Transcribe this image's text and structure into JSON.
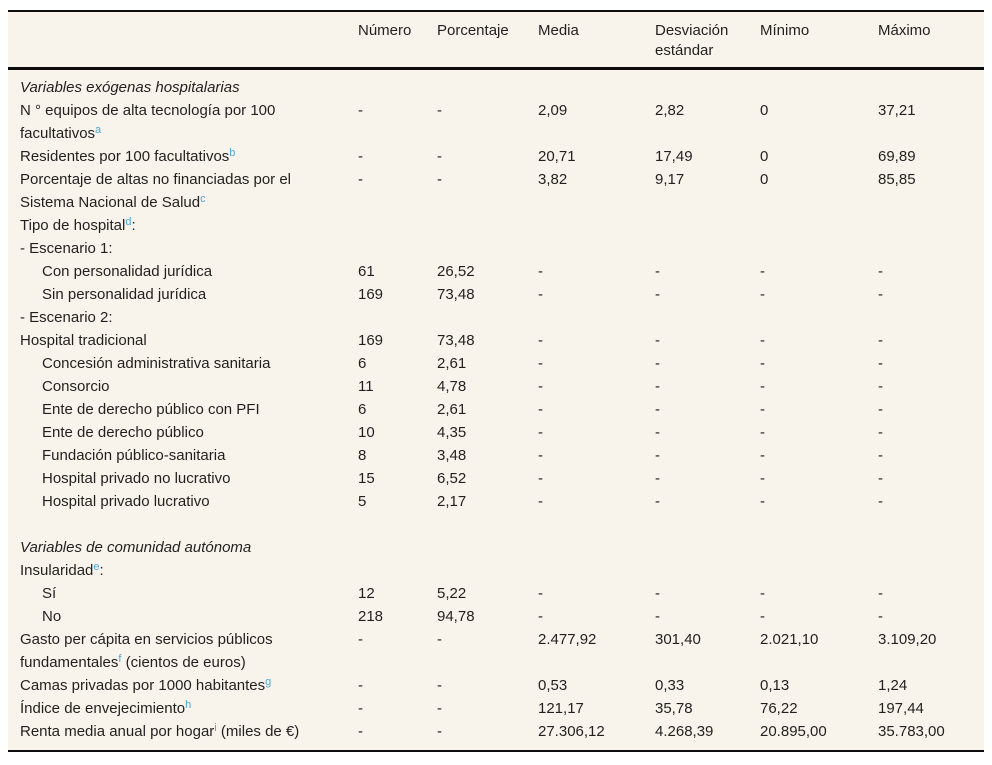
{
  "colors": {
    "table_background": "#f8f4ec",
    "border": "#0d0d0d",
    "text": "#231f1f",
    "footnote_link": "#4fa7d9"
  },
  "table": {
    "headers": [
      "Número",
      "Porcentaje",
      "Media",
      "Desviación estándar",
      "Mínimo",
      "Máximo"
    ],
    "rows": [
      {
        "style": "italic",
        "parts": [
          {
            "text": "Variables exógenas hospitalarias"
          }
        ],
        "cells": [
          "",
          "",
          "",
          "",
          "",
          ""
        ]
      },
      {
        "parts": [
          {
            "text": "N ° equipos de alta tecnología por 100 facultativos"
          },
          {
            "sup": "a"
          }
        ],
        "cells": [
          "-",
          "-",
          "2,09",
          "2,82",
          "0",
          "37,21"
        ]
      },
      {
        "parts": [
          {
            "text": "Residentes por 100 facultativos"
          },
          {
            "sup": "b"
          }
        ],
        "cells": [
          "-",
          "-",
          "20,71",
          "17,49",
          "0",
          "69,89"
        ]
      },
      {
        "parts": [
          {
            "text": "Porcentaje de altas no financiadas por el Sistema Nacional de Salud"
          },
          {
            "sup": "c"
          }
        ],
        "cells": [
          "-",
          "-",
          "3,82",
          "9,17",
          "0",
          "85,85"
        ]
      },
      {
        "parts": [
          {
            "text": "Tipo de hospital"
          },
          {
            "sup": "d"
          },
          {
            "text": ":"
          }
        ],
        "cells": [
          "",
          "",
          "",
          "",
          "",
          ""
        ]
      },
      {
        "parts": [
          {
            "text": "- Escenario 1:"
          }
        ],
        "cells": [
          "",
          "",
          "",
          "",
          "",
          ""
        ]
      },
      {
        "indent": true,
        "parts": [
          {
            "text": "Con personalidad jurídica"
          }
        ],
        "cells": [
          "61",
          "26,52",
          "-",
          "-",
          "-",
          "-"
        ]
      },
      {
        "indent": true,
        "parts": [
          {
            "text": "Sin personalidad jurídica"
          }
        ],
        "cells": [
          "169",
          "73,48",
          "-",
          "-",
          "-",
          "-"
        ]
      },
      {
        "parts": [
          {
            "text": "- Escenario 2:"
          }
        ],
        "cells": [
          "",
          "",
          "",
          "",
          "",
          ""
        ]
      },
      {
        "parts": [
          {
            "text": "Hospital tradicional"
          }
        ],
        "cells": [
          "169",
          "73,48",
          "-",
          "-",
          "-",
          "-"
        ]
      },
      {
        "indent": true,
        "parts": [
          {
            "text": "Concesión administrativa sanitaria"
          }
        ],
        "cells": [
          "6",
          "2,61",
          "-",
          "-",
          "-",
          "-"
        ]
      },
      {
        "indent": true,
        "parts": [
          {
            "text": "Consorcio"
          }
        ],
        "cells": [
          "11",
          "4,78",
          "-",
          "-",
          "-",
          "-"
        ]
      },
      {
        "indent": true,
        "parts": [
          {
            "text": "Ente de derecho público con PFI"
          }
        ],
        "cells": [
          "6",
          "2,61",
          "-",
          "-",
          "-",
          "-"
        ]
      },
      {
        "indent": true,
        "parts": [
          {
            "text": "Ente de derecho público"
          }
        ],
        "cells": [
          "10",
          "4,35",
          "-",
          "-",
          "-",
          "-"
        ]
      },
      {
        "indent": true,
        "parts": [
          {
            "text": "Fundación público-sanitaria"
          }
        ],
        "cells": [
          "8",
          "3,48",
          "-",
          "-",
          "-",
          "-"
        ]
      },
      {
        "indent": true,
        "parts": [
          {
            "text": "Hospital privado no lucrativo"
          }
        ],
        "cells": [
          "15",
          "6,52",
          "-",
          "-",
          "-",
          "-"
        ]
      },
      {
        "indent": true,
        "parts": [
          {
            "text": "Hospital privado lucrativo"
          }
        ],
        "cells": [
          "5",
          "2,17",
          "-",
          "-",
          "-",
          "-"
        ]
      },
      {
        "spacer": true
      },
      {
        "style": "italic",
        "parts": [
          {
            "text": "Variables de comunidad autónoma"
          }
        ],
        "cells": [
          "",
          "",
          "",
          "",
          "",
          ""
        ]
      },
      {
        "parts": [
          {
            "text": "Insularidad"
          },
          {
            "sup": "e"
          },
          {
            "text": ":"
          }
        ],
        "cells": [
          "",
          "",
          "",
          "",
          "",
          ""
        ]
      },
      {
        "indent": true,
        "parts": [
          {
            "text": "Sí"
          }
        ],
        "cells": [
          "12",
          "5,22",
          "-",
          "-",
          "-",
          "-"
        ]
      },
      {
        "indent": true,
        "parts": [
          {
            "text": "No"
          }
        ],
        "cells": [
          "218",
          "94,78",
          "-",
          "-",
          "-",
          "-"
        ]
      },
      {
        "parts": [
          {
            "text": "Gasto per cápita en servicios públicos fundamentales"
          },
          {
            "sup": "f"
          },
          {
            "text": " (cientos de euros)"
          }
        ],
        "cells": [
          "-",
          "-",
          "2.477,92",
          "301,40",
          "2.021,10",
          "3.109,20"
        ]
      },
      {
        "parts": [
          {
            "text": "Camas privadas por 1000 habitantes"
          },
          {
            "sup": "g"
          }
        ],
        "cells": [
          "-",
          "-",
          "0,53",
          "0,33",
          "0,13",
          "1,24"
        ]
      },
      {
        "parts": [
          {
            "text": "Índice de envejecimiento"
          },
          {
            "sup": "h"
          }
        ],
        "cells": [
          "-",
          "-",
          "121,17",
          "35,78",
          "76,22",
          "197,44"
        ]
      },
      {
        "parts": [
          {
            "text": "Renta media anual por hogar"
          },
          {
            "sup": "i"
          },
          {
            "text": " (miles de €)"
          }
        ],
        "cells": [
          "-",
          "-",
          "27.306,12",
          "4.268,39",
          "20.895,00",
          "35.783,00"
        ]
      }
    ]
  }
}
